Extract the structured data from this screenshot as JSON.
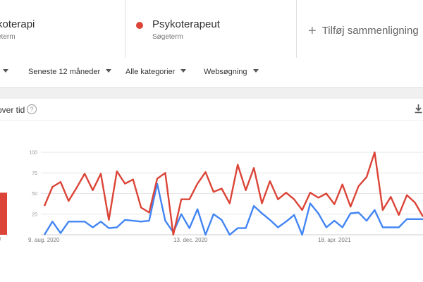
{
  "compare": {
    "term1": {
      "name": "koterapi",
      "sub": "eterm"
    },
    "term2": {
      "name": "Psykoterapeut",
      "sub": "Søgeterm",
      "color": "#db4437"
    },
    "add_label": "Tilføj sammenligning"
  },
  "filters": {
    "time": "Seneste 12 måneder",
    "category": "Alle kategorier",
    "search_type": "Websøgning"
  },
  "card": {
    "title": "over tid",
    "help": "?",
    "avg_label": "nit"
  },
  "chart_data": {
    "type": "line",
    "ylim": [
      0,
      100
    ],
    "y_ticks": [
      "100",
      "75",
      "50",
      "25"
    ],
    "x_labels": [
      "9. aug. 2020",
      "13. dec. 2020",
      "18. apr. 2021"
    ],
    "series": [
      {
        "color": "#db4437",
        "values": [
          35,
          58,
          64,
          41,
          57,
          74,
          54,
          74,
          18,
          77,
          62,
          67,
          33,
          27,
          68,
          75,
          0,
          43,
          43,
          62,
          76,
          52,
          56,
          38,
          85,
          54,
          81,
          38,
          65,
          43,
          51,
          43,
          30,
          51,
          45,
          50,
          37,
          61,
          34,
          59,
          70,
          100,
          30,
          46,
          24,
          48,
          39,
          22
        ]
      },
      {
        "color": "#4285f4",
        "values": [
          0,
          16,
          2,
          16,
          16,
          16,
          9,
          16,
          8,
          9,
          18,
          17,
          16,
          17,
          62,
          17,
          3,
          25,
          8,
          31,
          0,
          25,
          18,
          0,
          8,
          8,
          35,
          26,
          18,
          9,
          16,
          24,
          0,
          38,
          26,
          9,
          17,
          9,
          26,
          27,
          17,
          30,
          9,
          9,
          9,
          19,
          19,
          19
        ]
      }
    ],
    "bar": {
      "value": 51,
      "color": "#db4437"
    }
  }
}
